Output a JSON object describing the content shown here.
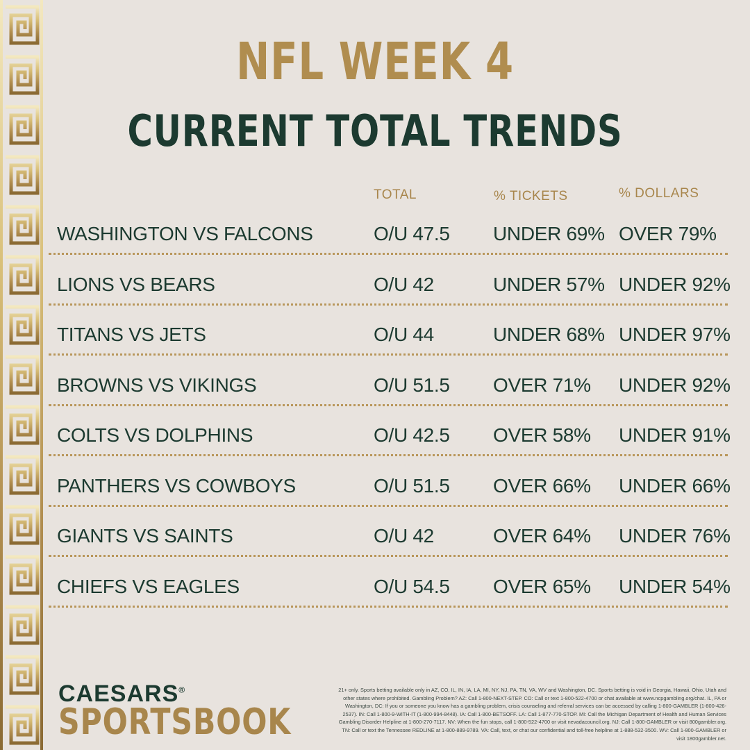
{
  "header": {
    "title": "NFL WEEK 4",
    "subtitle": "CURRENT TOTAL TRENDS"
  },
  "columns": {
    "total": "TOTAL",
    "tickets": "% TICKETS",
    "dollars": "% DOLLARS"
  },
  "rows": [
    {
      "matchup": "WASHINGTON VS FALCONS",
      "total": "O/U 47.5",
      "tickets": "UNDER 69%",
      "dollars": "OVER 79%"
    },
    {
      "matchup": "LIONS VS BEARS",
      "total": "O/U 42",
      "tickets": "UNDER 57%",
      "dollars": "UNDER 92%"
    },
    {
      "matchup": "TITANS VS JETS",
      "total": "O/U 44",
      "tickets": "UNDER 68%",
      "dollars": "UNDER 97%"
    },
    {
      "matchup": "BROWNS VS VIKINGS",
      "total": "O/U 51.5",
      "tickets": "OVER 71%",
      "dollars": "UNDER 92%"
    },
    {
      "matchup": "COLTS VS DOLPHINS",
      "total": "O/U 42.5",
      "tickets": "OVER 58%",
      "dollars": "UNDER 91%"
    },
    {
      "matchup": "PANTHERS VS COWBOYS",
      "total": "O/U 51.5",
      "tickets": "OVER 66%",
      "dollars": "UNDER 66%"
    },
    {
      "matchup": "GIANTS VS SAINTS",
      "total": "O/U 42",
      "tickets": "OVER 64%",
      "dollars": "UNDER 76%"
    },
    {
      "matchup": "CHIEFS VS EAGLES",
      "total": "O/U 54.5",
      "tickets": "OVER 65%",
      "dollars": "UNDER 54%"
    }
  ],
  "brand": {
    "top": "CAESARS",
    "mark": "®",
    "bottom": "SPORTSBOOK"
  },
  "disclaimer": "21+ only. Sports betting available only in AZ, CO, IL, IN, IA, LA, MI, NY, NJ, PA, TN, VA, WV and Washington, DC. Sports betting is void in Georgia, Hawaii, Ohio, Utah and other states where prohibited. Gambling Problem? AZ: Call 1-800-NEXT-STEP. CO: Call or text 1-800-522-4700 or chat available at www.ncpgambling.org/chat. IL, PA or Washington, DC: If you or someone you know has a gambling problem, crisis counseling and referral services can be accessed by calling 1-800-GAMBLER (1-800-426-2537). IN: Call 1-800-9-WITH-IT (1-800-994-8448). IA: Call 1-800-BETSOFF. LA: Call 1-877-770-STOP. MI: Call the Michigan Department of Health and Human Services Gambling Disorder Helpline at 1-800-270-7117. NV: When the fun stops, call 1-800-522-4700 or visit nevadacouncil.org. NJ: Call 1-800-GAMBLER or visit 800gambler.org. TN: Call or text the Tennessee REDLINE at 1-800-889-9789. VA: Call, text, or chat our confidential and toll-free helpline at 1-888-532-3500. WV: Call 1-800-GAMBLER or visit 1800gambler.net.",
  "colors": {
    "background": "#e8e3de",
    "gold": "#b08d4f",
    "green": "#1c3a30"
  }
}
